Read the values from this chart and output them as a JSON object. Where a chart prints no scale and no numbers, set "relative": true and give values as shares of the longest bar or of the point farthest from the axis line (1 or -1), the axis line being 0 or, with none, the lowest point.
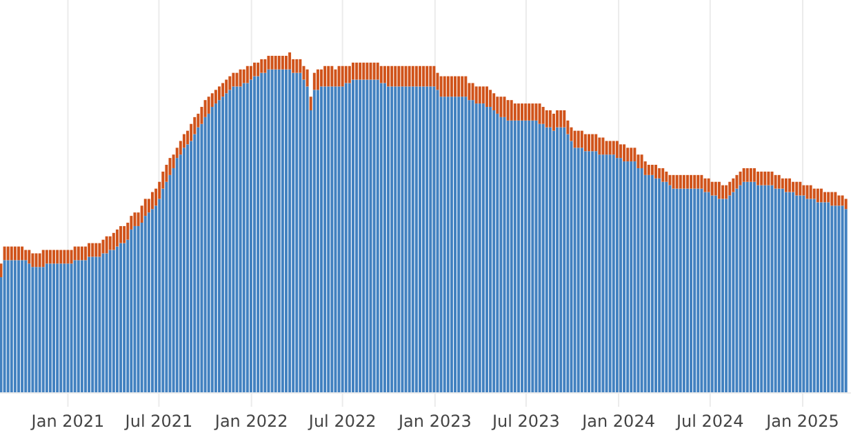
{
  "chart_data": {
    "type": "bar",
    "stacked": true,
    "relative": true,
    "grid": "x",
    "xlim": [
      "2020-08-19",
      "2025-04-07"
    ],
    "xticks": [
      {
        "value": "2021-01-01",
        "label": "Jan 2021"
      },
      {
        "value": "2021-07-01",
        "label": "Jul 2021"
      },
      {
        "value": "2022-01-01",
        "label": "Jan 2022"
      },
      {
        "value": "2022-07-01",
        "label": "Jul 2022"
      },
      {
        "value": "2023-01-01",
        "label": "Jan 2023"
      },
      {
        "value": "2023-07-01",
        "label": "Jul 2023"
      },
      {
        "value": "2024-01-01",
        "label": "Jan 2024"
      },
      {
        "value": "2024-07-01",
        "label": "Jul 2024"
      },
      {
        "value": "2025-01-01",
        "label": "Jan 2025"
      }
    ],
    "x": [
      "2020-08-21",
      "2020-08-28",
      "2020-09-04",
      "2020-09-11",
      "2020-09-18",
      "2020-09-25",
      "2020-10-02",
      "2020-10-09",
      "2020-10-16",
      "2020-10-23",
      "2020-10-30",
      "2020-11-06",
      "2020-11-13",
      "2020-11-20",
      "2020-11-27",
      "2020-12-04",
      "2020-12-11",
      "2020-12-18",
      "2020-12-25",
      "2021-01-01",
      "2021-01-08",
      "2021-01-15",
      "2021-01-22",
      "2021-01-29",
      "2021-02-05",
      "2021-02-12",
      "2021-02-19",
      "2021-02-26",
      "2021-03-05",
      "2021-03-12",
      "2021-03-19",
      "2021-03-26",
      "2021-04-02",
      "2021-04-09",
      "2021-04-16",
      "2021-04-23",
      "2021-04-30",
      "2021-05-07",
      "2021-05-14",
      "2021-05-21",
      "2021-05-28",
      "2021-06-04",
      "2021-06-11",
      "2021-06-18",
      "2021-06-25",
      "2021-07-02",
      "2021-07-09",
      "2021-07-16",
      "2021-07-23",
      "2021-07-30",
      "2021-08-06",
      "2021-08-13",
      "2021-08-20",
      "2021-08-27",
      "2021-09-03",
      "2021-09-10",
      "2021-09-17",
      "2021-09-24",
      "2021-10-01",
      "2021-10-08",
      "2021-10-15",
      "2021-10-22",
      "2021-10-29",
      "2021-11-05",
      "2021-11-12",
      "2021-11-19",
      "2021-11-26",
      "2021-12-03",
      "2021-12-10",
      "2021-12-17",
      "2021-12-24",
      "2021-12-31",
      "2022-01-07",
      "2022-01-14",
      "2022-01-21",
      "2022-01-28",
      "2022-02-04",
      "2022-02-11",
      "2022-02-18",
      "2022-02-25",
      "2022-03-04",
      "2022-03-11",
      "2022-03-18",
      "2022-03-25",
      "2022-04-01",
      "2022-04-08",
      "2022-04-15",
      "2022-04-22",
      "2022-04-29",
      "2022-05-06",
      "2022-05-13",
      "2022-05-20",
      "2022-05-27",
      "2022-06-03",
      "2022-06-10",
      "2022-06-17",
      "2022-06-24",
      "2022-07-01",
      "2022-07-08",
      "2022-07-15",
      "2022-07-22",
      "2022-07-29",
      "2022-08-05",
      "2022-08-12",
      "2022-08-19",
      "2022-08-26",
      "2022-09-02",
      "2022-09-09",
      "2022-09-16",
      "2022-09-23",
      "2022-09-30",
      "2022-10-07",
      "2022-10-14",
      "2022-10-21",
      "2022-10-28",
      "2022-11-04",
      "2022-11-11",
      "2022-11-18",
      "2022-11-25",
      "2022-12-02",
      "2022-12-09",
      "2022-12-16",
      "2022-12-23",
      "2022-12-30",
      "2023-01-06",
      "2023-01-13",
      "2023-01-20",
      "2023-01-27",
      "2023-02-03",
      "2023-02-10",
      "2023-02-17",
      "2023-02-24",
      "2023-03-03",
      "2023-03-10",
      "2023-03-17",
      "2023-03-24",
      "2023-03-31",
      "2023-04-07",
      "2023-04-14",
      "2023-04-21",
      "2023-04-28",
      "2023-05-05",
      "2023-05-12",
      "2023-05-19",
      "2023-05-26",
      "2023-06-02",
      "2023-06-09",
      "2023-06-16",
      "2023-06-23",
      "2023-06-30",
      "2023-07-07",
      "2023-07-14",
      "2023-07-21",
      "2023-07-28",
      "2023-08-04",
      "2023-08-11",
      "2023-08-18",
      "2023-08-25",
      "2023-09-01",
      "2023-09-08",
      "2023-09-15",
      "2023-09-22",
      "2023-09-29",
      "2023-10-06",
      "2023-10-13",
      "2023-10-20",
      "2023-10-27",
      "2023-11-03",
      "2023-11-10",
      "2023-11-17",
      "2023-11-24",
      "2023-12-01",
      "2023-12-08",
      "2023-12-15",
      "2023-12-22",
      "2023-12-29",
      "2024-01-05",
      "2024-01-12",
      "2024-01-19",
      "2024-01-26",
      "2024-02-02",
      "2024-02-09",
      "2024-02-16",
      "2024-02-23",
      "2024-03-01",
      "2024-03-08",
      "2024-03-15",
      "2024-03-22",
      "2024-03-29",
      "2024-04-05",
      "2024-04-12",
      "2024-04-19",
      "2024-04-26",
      "2024-05-03",
      "2024-05-10",
      "2024-05-17",
      "2024-05-24",
      "2024-05-31",
      "2024-06-07",
      "2024-06-14",
      "2024-06-21",
      "2024-06-28",
      "2024-07-05",
      "2024-07-12",
      "2024-07-19",
      "2024-07-26",
      "2024-08-02",
      "2024-08-09",
      "2024-08-16",
      "2024-08-23",
      "2024-08-30",
      "2024-09-06",
      "2024-09-13",
      "2024-09-20",
      "2024-09-27",
      "2024-10-04",
      "2024-10-11",
      "2024-10-18",
      "2024-10-25",
      "2024-11-01",
      "2024-11-08",
      "2024-11-15",
      "2024-11-22",
      "2024-11-29",
      "2024-12-06",
      "2024-12-13",
      "2024-12-20",
      "2024-12-27",
      "2025-01-03",
      "2025-01-10",
      "2025-01-17",
      "2025-01-24",
      "2025-01-31",
      "2025-02-07",
      "2025-02-14",
      "2025-02-21",
      "2025-02-28",
      "2025-03-07",
      "2025-03-14",
      "2025-03-21",
      "2025-03-28"
    ],
    "series": [
      {
        "color": "#4281c0",
        "values": [
          0.34,
          0.39,
          0.39,
          0.39,
          0.39,
          0.39,
          0.39,
          0.39,
          0.38,
          0.37,
          0.37,
          0.37,
          0.37,
          0.38,
          0.38,
          0.38,
          0.38,
          0.38,
          0.38,
          0.38,
          0.38,
          0.39,
          0.39,
          0.39,
          0.39,
          0.4,
          0.4,
          0.4,
          0.4,
          0.41,
          0.41,
          0.42,
          0.42,
          0.43,
          0.44,
          0.44,
          0.45,
          0.48,
          0.49,
          0.49,
          0.5,
          0.52,
          0.53,
          0.54,
          0.55,
          0.57,
          0.6,
          0.62,
          0.64,
          0.66,
          0.69,
          0.7,
          0.72,
          0.73,
          0.74,
          0.76,
          0.78,
          0.79,
          0.81,
          0.82,
          0.84,
          0.85,
          0.86,
          0.87,
          0.88,
          0.89,
          0.9,
          0.9,
          0.9,
          0.91,
          0.91,
          0.92,
          0.93,
          0.93,
          0.94,
          0.94,
          0.95,
          0.95,
          0.95,
          0.95,
          0.95,
          0.95,
          0.95,
          0.94,
          0.94,
          0.94,
          0.92,
          0.9,
          0.83,
          0.89,
          0.89,
          0.9,
          0.9,
          0.9,
          0.9,
          0.9,
          0.9,
          0.9,
          0.91,
          0.91,
          0.92,
          0.92,
          0.92,
          0.92,
          0.92,
          0.92,
          0.92,
          0.92,
          0.91,
          0.91,
          0.9,
          0.9,
          0.9,
          0.9,
          0.9,
          0.9,
          0.9,
          0.9,
          0.9,
          0.9,
          0.9,
          0.9,
          0.9,
          0.9,
          0.89,
          0.87,
          0.87,
          0.87,
          0.87,
          0.87,
          0.87,
          0.87,
          0.87,
          0.86,
          0.86,
          0.85,
          0.85,
          0.85,
          0.84,
          0.84,
          0.83,
          0.82,
          0.81,
          0.81,
          0.8,
          0.8,
          0.8,
          0.8,
          0.8,
          0.8,
          0.8,
          0.8,
          0.8,
          0.79,
          0.79,
          0.78,
          0.78,
          0.77,
          0.78,
          0.78,
          0.78,
          0.76,
          0.74,
          0.72,
          0.72,
          0.72,
          0.71,
          0.71,
          0.71,
          0.71,
          0.7,
          0.7,
          0.7,
          0.7,
          0.7,
          0.69,
          0.69,
          0.68,
          0.68,
          0.68,
          0.68,
          0.66,
          0.66,
          0.64,
          0.64,
          0.64,
          0.63,
          0.63,
          0.62,
          0.62,
          0.61,
          0.6,
          0.6,
          0.6,
          0.6,
          0.6,
          0.6,
          0.6,
          0.6,
          0.6,
          0.59,
          0.59,
          0.58,
          0.58,
          0.57,
          0.57,
          0.57,
          0.58,
          0.59,
          0.6,
          0.61,
          0.62,
          0.62,
          0.62,
          0.62,
          0.61,
          0.61,
          0.61,
          0.61,
          0.61,
          0.6,
          0.6,
          0.6,
          0.59,
          0.59,
          0.59,
          0.58,
          0.58,
          0.58,
          0.57,
          0.57,
          0.57,
          0.56,
          0.56,
          0.56,
          0.56,
          0.55,
          0.55,
          0.55,
          0.55,
          0.54
        ]
      },
      {
        "color": "#d0531a",
        "values": [
          0.04,
          0.04,
          0.04,
          0.04,
          0.04,
          0.04,
          0.04,
          0.03,
          0.04,
          0.04,
          0.04,
          0.04,
          0.05,
          0.04,
          0.04,
          0.04,
          0.04,
          0.04,
          0.04,
          0.04,
          0.04,
          0.04,
          0.04,
          0.04,
          0.04,
          0.04,
          0.04,
          0.04,
          0.04,
          0.04,
          0.05,
          0.04,
          0.05,
          0.05,
          0.05,
          0.05,
          0.05,
          0.04,
          0.04,
          0.04,
          0.05,
          0.05,
          0.04,
          0.05,
          0.05,
          0.05,
          0.05,
          0.05,
          0.05,
          0.04,
          0.03,
          0.04,
          0.04,
          0.04,
          0.05,
          0.05,
          0.04,
          0.05,
          0.05,
          0.05,
          0.04,
          0.04,
          0.04,
          0.04,
          0.04,
          0.04,
          0.04,
          0.04,
          0.05,
          0.04,
          0.05,
          0.04,
          0.04,
          0.04,
          0.04,
          0.04,
          0.04,
          0.04,
          0.04,
          0.04,
          0.04,
          0.04,
          0.05,
          0.04,
          0.04,
          0.04,
          0.04,
          0.05,
          0.04,
          0.05,
          0.06,
          0.05,
          0.06,
          0.06,
          0.06,
          0.05,
          0.06,
          0.06,
          0.05,
          0.05,
          0.05,
          0.05,
          0.05,
          0.05,
          0.05,
          0.05,
          0.05,
          0.05,
          0.05,
          0.05,
          0.06,
          0.06,
          0.06,
          0.06,
          0.06,
          0.06,
          0.06,
          0.06,
          0.06,
          0.06,
          0.06,
          0.06,
          0.06,
          0.06,
          0.05,
          0.06,
          0.06,
          0.06,
          0.06,
          0.06,
          0.06,
          0.06,
          0.06,
          0.05,
          0.05,
          0.05,
          0.05,
          0.05,
          0.06,
          0.05,
          0.05,
          0.05,
          0.06,
          0.06,
          0.06,
          0.06,
          0.05,
          0.05,
          0.05,
          0.05,
          0.05,
          0.05,
          0.05,
          0.06,
          0.05,
          0.05,
          0.05,
          0.05,
          0.05,
          0.05,
          0.05,
          0.04,
          0.04,
          0.05,
          0.05,
          0.05,
          0.05,
          0.05,
          0.05,
          0.05,
          0.05,
          0.05,
          0.04,
          0.04,
          0.04,
          0.05,
          0.04,
          0.05,
          0.04,
          0.04,
          0.04,
          0.04,
          0.04,
          0.04,
          0.03,
          0.03,
          0.04,
          0.03,
          0.04,
          0.03,
          0.03,
          0.04,
          0.04,
          0.04,
          0.04,
          0.04,
          0.04,
          0.04,
          0.04,
          0.04,
          0.04,
          0.04,
          0.04,
          0.04,
          0.05,
          0.04,
          0.04,
          0.04,
          0.04,
          0.04,
          0.04,
          0.04,
          0.04,
          0.04,
          0.04,
          0.04,
          0.04,
          0.04,
          0.04,
          0.04,
          0.04,
          0.04,
          0.03,
          0.04,
          0.04,
          0.03,
          0.04,
          0.04,
          0.03,
          0.04,
          0.04,
          0.03,
          0.04,
          0.04,
          0.03,
          0.03,
          0.04,
          0.04,
          0.03,
          0.03,
          0.03
        ]
      }
    ]
  }
}
